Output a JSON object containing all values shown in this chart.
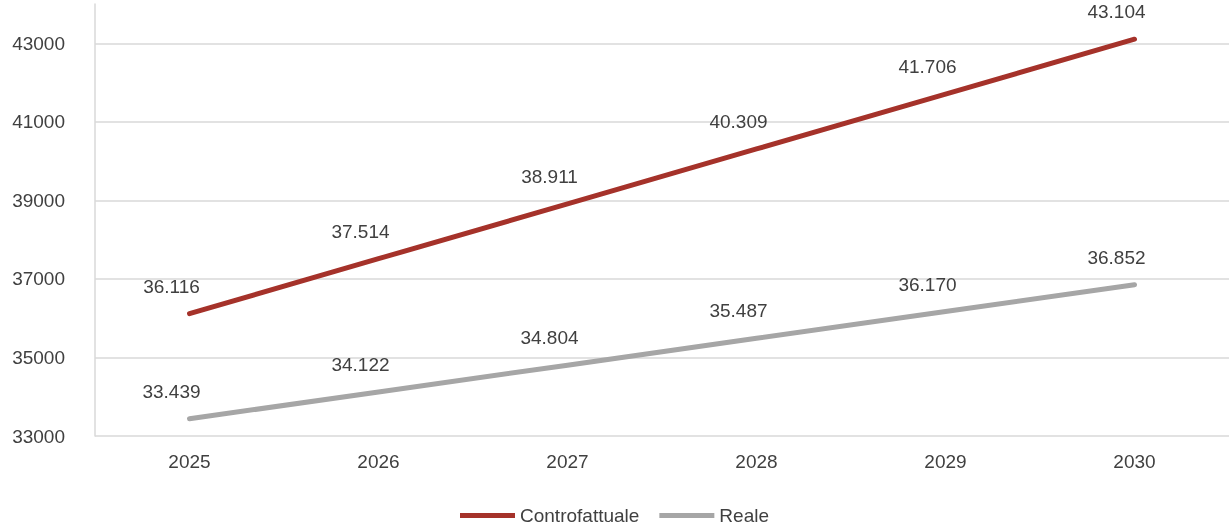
{
  "chart_data": {
    "type": "line",
    "categories": [
      "2025",
      "2026",
      "2027",
      "2028",
      "2029",
      "2030"
    ],
    "series": [
      {
        "name": "Controfattuale",
        "color": "#a5322a",
        "values": [
          36116,
          37514,
          38911,
          40309,
          41706,
          43104
        ],
        "value_labels": [
          "36.116",
          "37.514",
          "38.911",
          "40.309",
          "41.706",
          "43.104"
        ]
      },
      {
        "name": "Reale",
        "color": "#a6a6a6",
        "values": [
          33439,
          34122,
          34804,
          35487,
          36170,
          36852
        ],
        "value_labels": [
          "33.439",
          "34.122",
          "34.804",
          "35.487",
          "36.170",
          "36.852"
        ]
      }
    ],
    "ylim": [
      33000,
      44000
    ],
    "yticks": [
      33000,
      35000,
      37000,
      39000,
      41000,
      43000
    ],
    "grid": "y",
    "legend": "bottom",
    "marker": "none",
    "line_style": "solid"
  }
}
